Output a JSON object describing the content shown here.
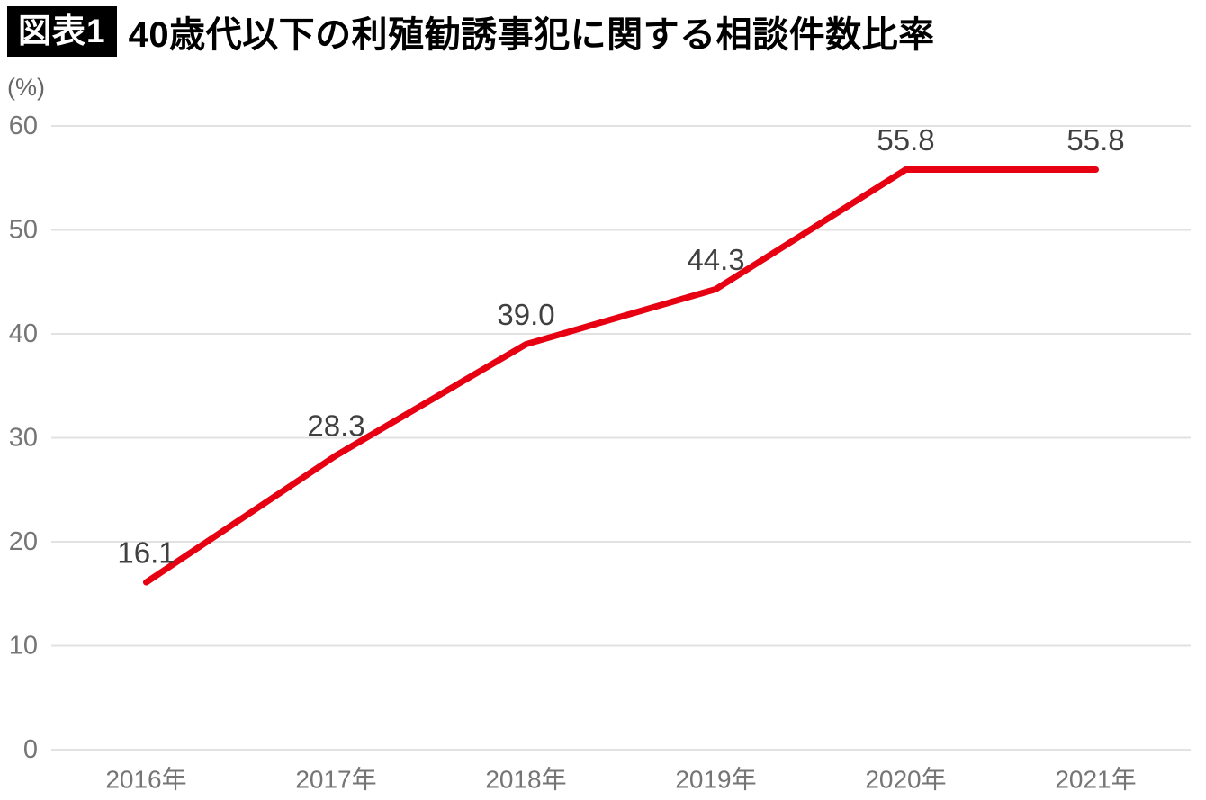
{
  "header": {
    "badge": "図表1",
    "title": "40歳代以下の利殖勧誘事犯に関する相談件数比率"
  },
  "chart_data": {
    "type": "line",
    "title": "40歳代以下の利殖勧誘事犯に関する相談件数比率",
    "unit_label": "(%)",
    "categories": [
      "2016年",
      "2017年",
      "2018年",
      "2019年",
      "2020年",
      "2021年"
    ],
    "values": [
      16.1,
      28.3,
      39.0,
      44.3,
      55.8,
      55.8
    ],
    "data_labels": [
      "16.1",
      "28.3",
      "39.0",
      "44.3",
      "55.8",
      "55.8"
    ],
    "y_ticks": [
      0,
      10,
      20,
      30,
      40,
      50,
      60
    ],
    "ylim": [
      0,
      60
    ],
    "grid": true,
    "legend": "none",
    "colors": {
      "line": "#e60012",
      "data_label": "#404040",
      "tick_label": "#757575",
      "gridline": "#e2e2e2",
      "title": "#000000",
      "badge_bg": "#000000",
      "badge_text": "#ffffff"
    }
  }
}
